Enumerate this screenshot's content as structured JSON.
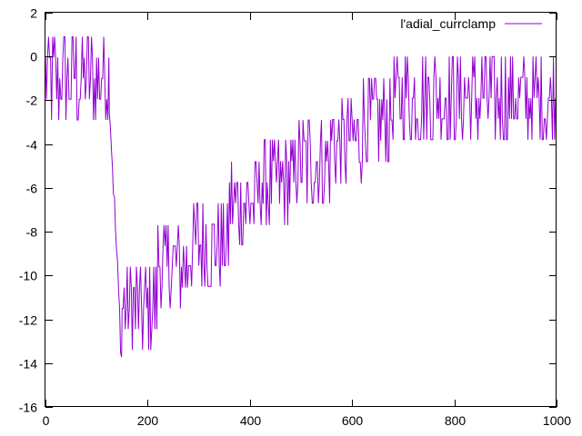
{
  "chart_data": {
    "type": "line",
    "xlim": [
      0,
      1000
    ],
    "ylim": [
      -16,
      2
    ],
    "xticks": [
      0,
      200,
      400,
      600,
      800,
      1000
    ],
    "yticks": [
      -16,
      -14,
      -12,
      -10,
      -8,
      -6,
      -4,
      -2,
      0,
      2
    ],
    "grid": false,
    "legend_position": "top-right",
    "colors": {
      "series": "#9400d3",
      "axis": "#000000",
      "background": "#ffffff"
    },
    "series": [
      {
        "name": "l'adial_currclamp",
        "description_of_signal": "staircase with noisy oscillation",
        "segments": [
          {
            "x_start": 0,
            "x_end": 125,
            "low": -2.9,
            "high": 0.9
          },
          {
            "x_start": 125,
            "x_end": 150,
            "low": -14.3,
            "high": -1.9
          },
          {
            "x_start": 150,
            "x_end": 220,
            "low": -13.4,
            "high": -9.6
          },
          {
            "x_start": 220,
            "x_end": 280,
            "low": -11.5,
            "high": -7.7
          },
          {
            "x_start": 280,
            "x_end": 360,
            "low": -10.5,
            "high": -6.7
          },
          {
            "x_start": 360,
            "x_end": 420,
            "low": -8.6,
            "high": -4.8
          },
          {
            "x_start": 420,
            "x_end": 490,
            "low": -7.7,
            "high": -3.8
          },
          {
            "x_start": 490,
            "x_end": 560,
            "low": -6.7,
            "high": -2.9
          },
          {
            "x_start": 560,
            "x_end": 620,
            "low": -5.8,
            "high": -1.9
          },
          {
            "x_start": 620,
            "x_end": 680,
            "low": -4.8,
            "high": -1.0
          },
          {
            "x_start": 680,
            "x_end": 1000,
            "low": -3.8,
            "high": 0.0
          }
        ]
      }
    ]
  }
}
